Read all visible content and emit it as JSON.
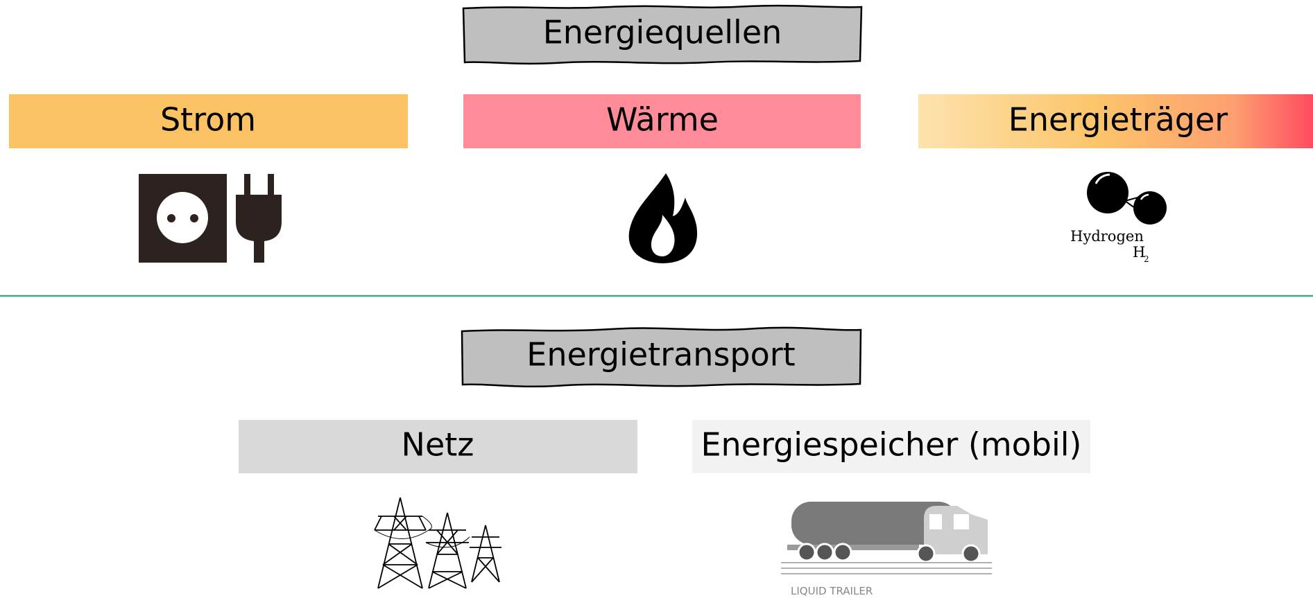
{
  "sources": {
    "title": "Energiequellen",
    "items": [
      {
        "label": "Strom"
      },
      {
        "label": "Wärme"
      },
      {
        "label": "Energieträger",
        "icon_text": "Hydrogen",
        "formula": "H",
        "subscript": "2"
      }
    ]
  },
  "transport": {
    "title": "Energietransport",
    "items": [
      {
        "label": "Netz"
      },
      {
        "label": "Energiespeicher (mobil)",
        "icon_text": "LIQUID TRAILER"
      }
    ]
  }
}
